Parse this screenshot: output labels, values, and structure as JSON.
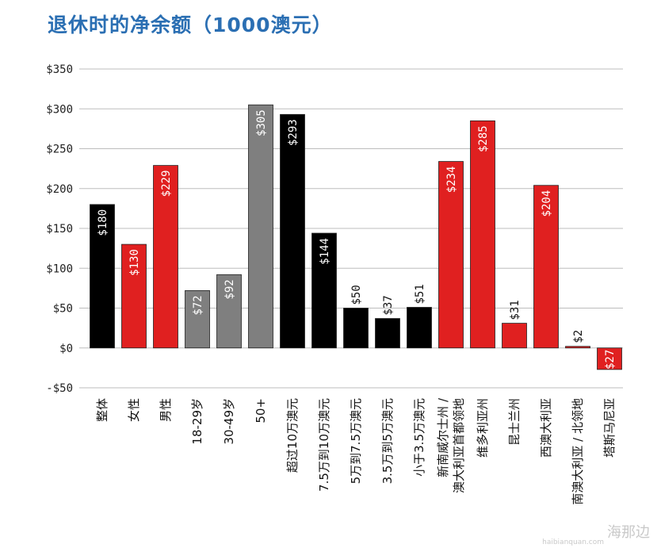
{
  "title": "退休时的净余额（1000澳元）",
  "watermark": "海那边",
  "watermark_sub": "haibianquan.com",
  "chart_data": {
    "type": "bar",
    "title": "退休时的净余额（1000澳元）",
    "xlabel": "",
    "ylabel": "",
    "ylim": [
      -50,
      350
    ],
    "yticks": [
      350,
      300,
      250,
      200,
      150,
      100,
      50,
      0,
      -50
    ],
    "ytick_labels": [
      "$350",
      "$300",
      "$250",
      "$200",
      "$150",
      "$100",
      "$50",
      "$0",
      "-$50"
    ],
    "grid": true,
    "categories": [
      [
        "整体"
      ],
      [
        "女性"
      ],
      [
        "男性"
      ],
      [
        "18-29岁"
      ],
      [
        "30-49岁"
      ],
      [
        "50+"
      ],
      [
        "超过10万澳元"
      ],
      [
        "7.5万到10万澳元"
      ],
      [
        "5万到7.5万澳元"
      ],
      [
        "3.5万到5万澳元"
      ],
      [
        "小于3.5万澳元"
      ],
      [
        "新南威尔士州 /",
        "澳大利亚首都领地"
      ],
      [
        "维多利亚州"
      ],
      [
        "昆士兰州"
      ],
      [
        "西澳大利亚"
      ],
      [
        "南澳大利亚 / 北领地"
      ],
      [
        "塔斯马尼亚"
      ]
    ],
    "values": [
      180,
      130,
      229,
      72,
      92,
      305,
      293,
      144,
      50,
      37,
      51,
      234,
      285,
      31,
      204,
      2,
      -27
    ],
    "value_labels": [
      "$180",
      "$130",
      "$229",
      "$72",
      "$92",
      "$305",
      "$293",
      "$144",
      "$50",
      "$37",
      "$51",
      "$234",
      "$285",
      "$31",
      "$204",
      "$2",
      "-$27"
    ],
    "colors": [
      "#000000",
      "#e02020",
      "#e02020",
      "#7f7f7f",
      "#7f7f7f",
      "#7f7f7f",
      "#000000",
      "#000000",
      "#000000",
      "#000000",
      "#000000",
      "#e02020",
      "#e02020",
      "#e02020",
      "#e02020",
      "#e02020",
      "#e02020"
    ],
    "label_inside": [
      true,
      true,
      true,
      true,
      true,
      true,
      true,
      true,
      false,
      false,
      false,
      true,
      true,
      false,
      true,
      false,
      true
    ]
  }
}
